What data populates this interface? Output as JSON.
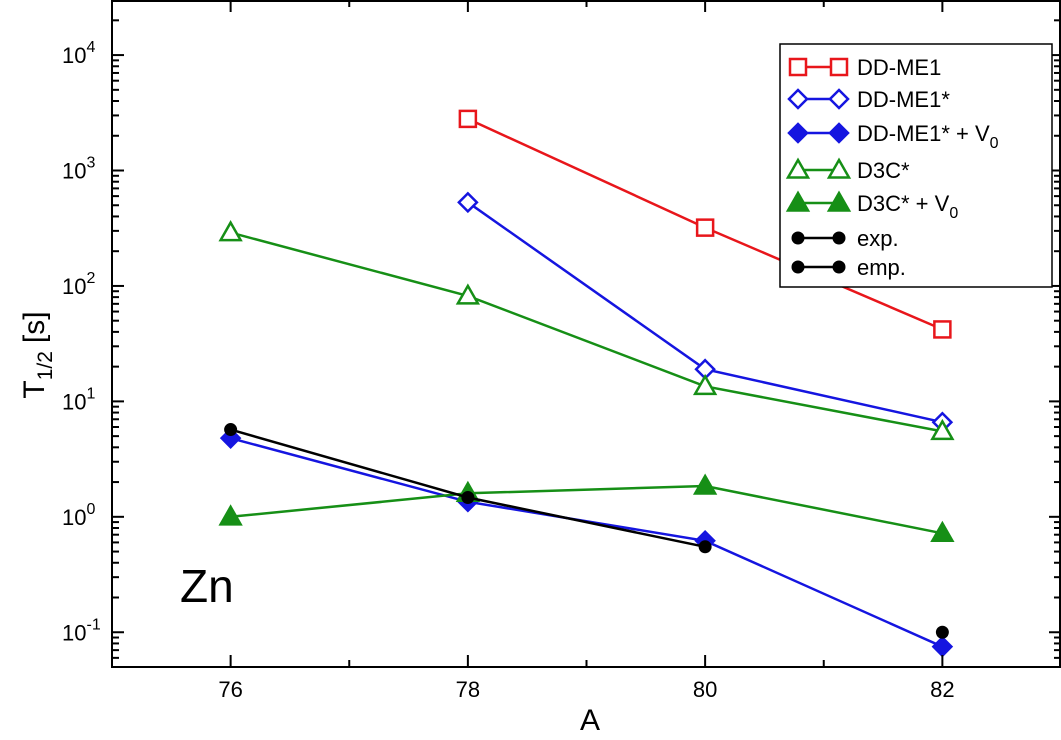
{
  "chart_data": {
    "type": "line",
    "xlabel": "A",
    "ylabel_main": "T",
    "ylabel_sub": "1/2",
    "ylabel_unit": "[s]",
    "annotation": "Zn",
    "y_scale": "log",
    "xlim": [
      75,
      83
    ],
    "ylim": [
      0.05,
      30000
    ],
    "x_ticks": [
      "76",
      "78",
      "80",
      "82"
    ],
    "y_ticks": [
      {
        "base": "10",
        "exp": "-1",
        "value": 0.1
      },
      {
        "base": "10",
        "exp": "0",
        "value": 1
      },
      {
        "base": "10",
        "exp": "1",
        "value": 10
      },
      {
        "base": "10",
        "exp": "2",
        "value": 100
      },
      {
        "base": "10",
        "exp": "3",
        "value": 1000
      },
      {
        "base": "10",
        "exp": "4",
        "value": 10000
      }
    ],
    "legend_position": "top-right",
    "series": [
      {
        "name": "DD-ME1",
        "name_sub": "",
        "color": "#e8161b",
        "marker": "square-open",
        "connected": true,
        "points": [
          [
            78,
            2800
          ],
          [
            80,
            320
          ],
          [
            82,
            42
          ]
        ]
      },
      {
        "name": "DD-ME1*",
        "name_sub": "",
        "color": "#1515e0",
        "marker": "diamond-open",
        "connected": true,
        "points": [
          [
            78,
            530
          ],
          [
            80,
            19
          ],
          [
            82,
            6.6
          ]
        ]
      },
      {
        "name": "DD-ME1* + V",
        "name_sub": "0",
        "color": "#1515e0",
        "marker": "diamond-filled",
        "connected": true,
        "points": [
          [
            76,
            4.8
          ],
          [
            78,
            1.35
          ],
          [
            80,
            0.62
          ],
          [
            82,
            0.075
          ]
        ]
      },
      {
        "name": "D3C*",
        "name_sub": "",
        "color": "#168f16",
        "marker": "triangle-open",
        "connected": true,
        "points": [
          [
            76,
            290
          ],
          [
            78,
            82
          ],
          [
            80,
            13.5
          ],
          [
            82,
            5.5
          ]
        ]
      },
      {
        "name": "D3C* + V",
        "name_sub": "0",
        "color": "#168f16",
        "marker": "triangle-filled",
        "connected": true,
        "points": [
          [
            76,
            1.0
          ],
          [
            78,
            1.6
          ],
          [
            80,
            1.85
          ],
          [
            82,
            0.72
          ]
        ]
      },
      {
        "name": "exp.",
        "name_sub": "",
        "color": "#000000",
        "marker": "circle-filled",
        "connected": true,
        "points": [
          [
            76,
            5.7
          ],
          [
            78,
            1.47
          ],
          [
            80,
            0.55
          ]
        ]
      },
      {
        "name": "emp.",
        "name_sub": "",
        "color": "#000000",
        "marker": "circle-filled",
        "connected": false,
        "points": [
          [
            82,
            0.1
          ]
        ]
      }
    ]
  }
}
